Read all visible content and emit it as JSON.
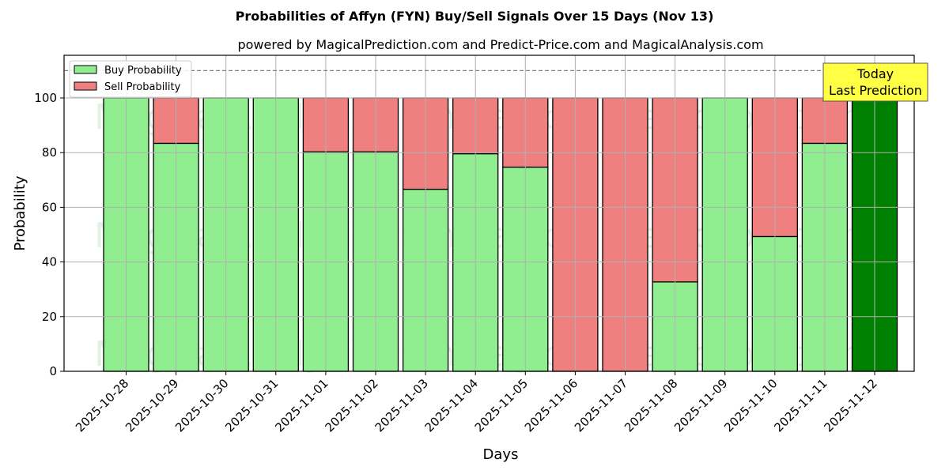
{
  "chart_data": {
    "type": "bar",
    "stacked": true,
    "title": "Probabilities of Affyn (FYN) Buy/Sell Signals Over 15 Days (Nov 13)",
    "subtitle": "powered by MagicalPrediction.com and Predict-Price.com and MagicalAnalysis.com",
    "xlabel": "Days",
    "ylabel": "Probability",
    "ylim": [
      0,
      115
    ],
    "yticks": [
      0,
      20,
      40,
      60,
      80,
      100
    ],
    "grid": true,
    "legend_position": "upper left",
    "reference_line": {
      "y": 110,
      "style": "dashed",
      "color": "#808080"
    },
    "categories": [
      "2025-10-28",
      "2025-10-29",
      "2025-10-30",
      "2025-10-31",
      "2025-11-01",
      "2025-11-02",
      "2025-11-03",
      "2025-11-04",
      "2025-11-05",
      "2025-11-06",
      "2025-11-07",
      "2025-11-08",
      "2025-11-09",
      "2025-11-10",
      "2025-11-11",
      "2025-11-12"
    ],
    "series": [
      {
        "name": "Buy Probability",
        "color": "#90ee90",
        "values": [
          100,
          83.4,
          100,
          100,
          80.3,
          80.3,
          66.6,
          79.6,
          74.7,
          0,
          0,
          32.7,
          100,
          49.3,
          83.4,
          100
        ]
      },
      {
        "name": "Sell Probability",
        "color": "#f08080",
        "values": [
          0,
          16.6,
          0,
          0,
          19.7,
          19.7,
          33.4,
          20.4,
          25.3,
          100,
          100,
          67.3,
          0,
          50.7,
          16.6,
          0
        ]
      }
    ],
    "highlight": {
      "index": 15,
      "color": "#008000",
      "annotation": [
        "Today",
        "Last Prediction"
      ],
      "annotation_bg": "#ffff44"
    },
    "watermarks": [
      "MagicalAnalysis.com",
      "Magical Prediction.com"
    ]
  }
}
